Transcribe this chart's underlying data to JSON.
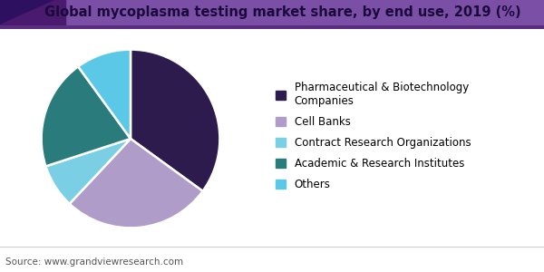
{
  "title": "Global mycoplasma testing market share, by end use, 2019 (%)",
  "source": "Source: www.grandviewresearch.com",
  "legend_labels": [
    "Pharmaceutical & Biotechnology\nCompanies",
    "Cell Banks",
    "Contract Research Organizations",
    "Academic & Research Institutes",
    "Others"
  ],
  "values": [
    35,
    27,
    8,
    20,
    10
  ],
  "colors": [
    "#2d1b4e",
    "#b09cc8",
    "#7acfe4",
    "#2a7b7c",
    "#5bc8e8"
  ],
  "startangle": 90,
  "background_color": "#ffffff",
  "title_fontsize": 10.5,
  "title_color": "#1a0a3c",
  "legend_fontsize": 8.5,
  "source_fontsize": 7.5,
  "source_color": "#555555",
  "header_dark": "#4a1a6e",
  "header_light": "#7b4fa6",
  "header_line": "#5a2d82"
}
